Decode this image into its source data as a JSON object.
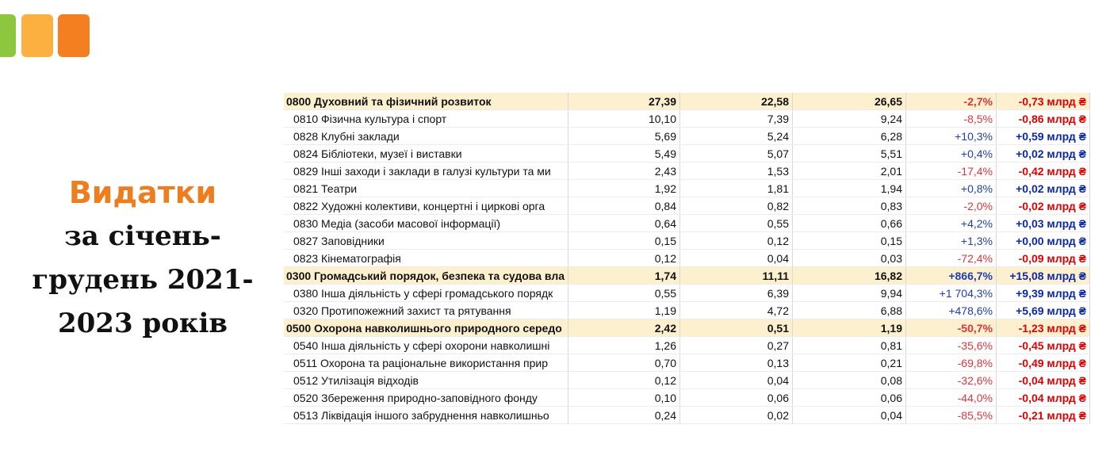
{
  "heading": {
    "title": "Видатки",
    "subtitle": [
      "за січень-",
      "грудень 2021-",
      "2023 років"
    ]
  },
  "table": {
    "rows": [
      {
        "highlight": true,
        "cells": [
          "0800 Духовний та фізичний розвиток",
          "27,39",
          "22,58",
          "26,65",
          "-2,7%",
          "-0,73 млрд ₴"
        ]
      },
      {
        "highlight": false,
        "cells": [
          "0810 Фізична культура і спорт",
          "10,10",
          "7,39",
          "9,24",
          "-8,5%",
          "-0,86 млрд ₴"
        ]
      },
      {
        "highlight": false,
        "cells": [
          "0828 Клубні заклади",
          "5,69",
          "5,24",
          "6,28",
          "+10,3%",
          "+0,59 млрд ₴"
        ]
      },
      {
        "highlight": false,
        "cells": [
          "0824 Бібліотеки, музеї і виставки",
          "5,49",
          "5,07",
          "5,51",
          "+0,4%",
          "+0,02 млрд ₴"
        ]
      },
      {
        "highlight": false,
        "cells": [
          "0829 Інші заходи і заклади в галузі культури та ми",
          "2,43",
          "1,53",
          "2,01",
          "-17,4%",
          "-0,42 млрд ₴"
        ]
      },
      {
        "highlight": false,
        "cells": [
          "0821 Театри",
          "1,92",
          "1,81",
          "1,94",
          "+0,8%",
          "+0,02 млрд ₴"
        ]
      },
      {
        "highlight": false,
        "cells": [
          "0822 Художні колективи, концертні і циркові орга",
          "0,84",
          "0,82",
          "0,83",
          "-2,0%",
          "-0,02 млрд ₴"
        ]
      },
      {
        "highlight": false,
        "cells": [
          "0830 Медіа (засоби масової інформації)",
          "0,64",
          "0,55",
          "0,66",
          "+4,2%",
          "+0,03 млрд ₴"
        ]
      },
      {
        "highlight": false,
        "cells": [
          "0827 Заповідники",
          "0,15",
          "0,12",
          "0,15",
          "+1,3%",
          "+0,00 млрд ₴"
        ]
      },
      {
        "highlight": false,
        "cells": [
          "0823 Кінематографія",
          "0,12",
          "0,04",
          "0,03",
          "-72,4%",
          "-0,09 млрд ₴"
        ]
      },
      {
        "highlight": true,
        "cells": [
          "0300 Громадський порядок, безпека та судова вла",
          "1,74",
          "11,11",
          "16,82",
          "+866,7%",
          "+15,08 млрд ₴"
        ]
      },
      {
        "highlight": false,
        "cells": [
          "0380 Інша діяльність у сфері громадського порядк",
          "0,55",
          "6,39",
          "9,94",
          "+1 704,3%",
          "+9,39 млрд ₴"
        ]
      },
      {
        "highlight": false,
        "cells": [
          "0320 Протипожежний захист та рятування",
          "1,19",
          "4,72",
          "6,88",
          "+478,6%",
          "+5,69 млрд ₴"
        ]
      },
      {
        "highlight": true,
        "cells": [
          "0500 Охорона навколишнього природного середо",
          "2,42",
          "0,51",
          "1,19",
          "-50,7%",
          "-1,23 млрд ₴"
        ]
      },
      {
        "highlight": false,
        "cells": [
          "0540 Інша діяльність у сфері охорони навколишні",
          "1,26",
          "0,27",
          "0,81",
          "-35,6%",
          "-0,45 млрд ₴"
        ]
      },
      {
        "highlight": false,
        "cells": [
          "0511 Охорона та раціональне використання прир",
          "0,70",
          "0,13",
          "0,21",
          "-69,8%",
          "-0,49 млрд ₴"
        ]
      },
      {
        "highlight": false,
        "cells": [
          "0512 Утилізація відходів",
          "0,12",
          "0,04",
          "0,08",
          "-32,6%",
          "-0,04 млрд ₴"
        ]
      },
      {
        "highlight": false,
        "cells": [
          "0520 Збереження природно-заповідного фонду",
          "0,10",
          "0,06",
          "0,06",
          "-44,0%",
          "-0,04 млрд ₴"
        ]
      },
      {
        "highlight": false,
        "cells": [
          "0513 Ліквідація іншого забруднення навколишньо",
          "0,24",
          "0,02",
          "0,04",
          "-85,5%",
          "-0,21 млрд ₴"
        ]
      }
    ]
  }
}
